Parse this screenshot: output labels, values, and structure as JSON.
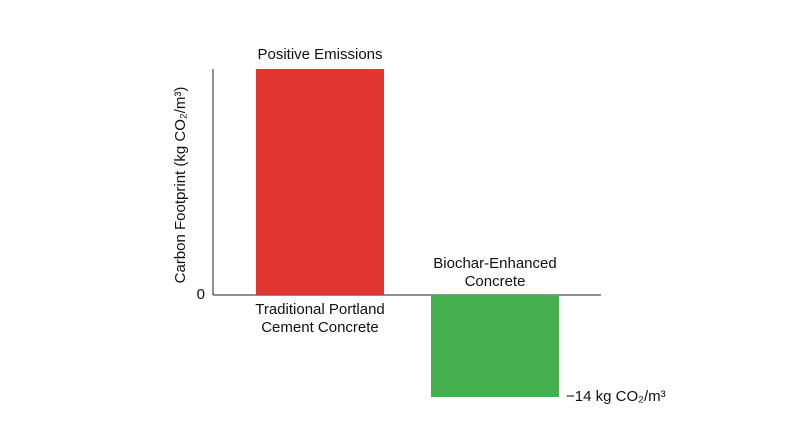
{
  "chart_data": {
    "type": "bar",
    "ylabel": "Carbon Footprint (kg CO₂/m³)",
    "categories": [
      "Traditional Portland Cement Concrete",
      "Biochar-Enhanced Concrete"
    ],
    "values": [
      31,
      -14
    ],
    "value_labels": [
      null,
      "−14 kg CO₂/m³"
    ],
    "annotation": "Positive Emissions",
    "colors": [
      "#e0362f",
      "#45b04f"
    ],
    "ylim": [
      -14,
      31
    ],
    "yticks": [
      0
    ],
    "grid": false
  }
}
